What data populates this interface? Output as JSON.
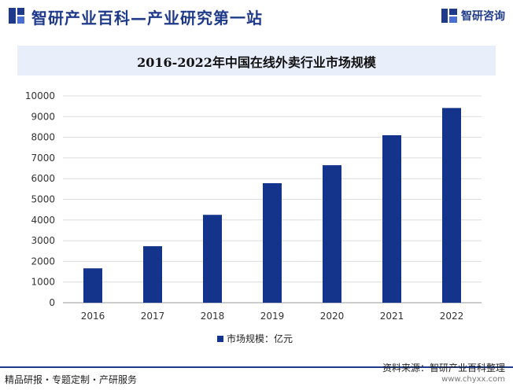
{
  "header": {
    "site_title": "智研产业百科—产业研究第一站",
    "logo_text": "智研咨询",
    "brand_color": "#1f3a8a"
  },
  "chart_data": {
    "type": "bar",
    "title": "2016-2022年中国在线外卖行业市场规模",
    "categories": [
      "2016",
      "2017",
      "2018",
      "2019",
      "2020",
      "2021",
      "2022"
    ],
    "series": [
      {
        "name": "市场规模：亿元",
        "values": [
          1663,
          2733,
          4250,
          5780,
          6650,
          8100,
          9417
        ],
        "color": "#14338a"
      }
    ],
    "xlabel": "",
    "ylabel": "",
    "ylim": [
      0,
      10000
    ],
    "yticks": [
      0,
      1000,
      2000,
      3000,
      4000,
      5000,
      6000,
      7000,
      8000,
      9000,
      10000
    ],
    "grid": true,
    "legend_position": "bottom"
  },
  "footer": {
    "left_text": "精品研报・专题定制・产研服务",
    "source_text": "资料来源：智研产业百科整理",
    "url": "www.chyxx.com"
  }
}
